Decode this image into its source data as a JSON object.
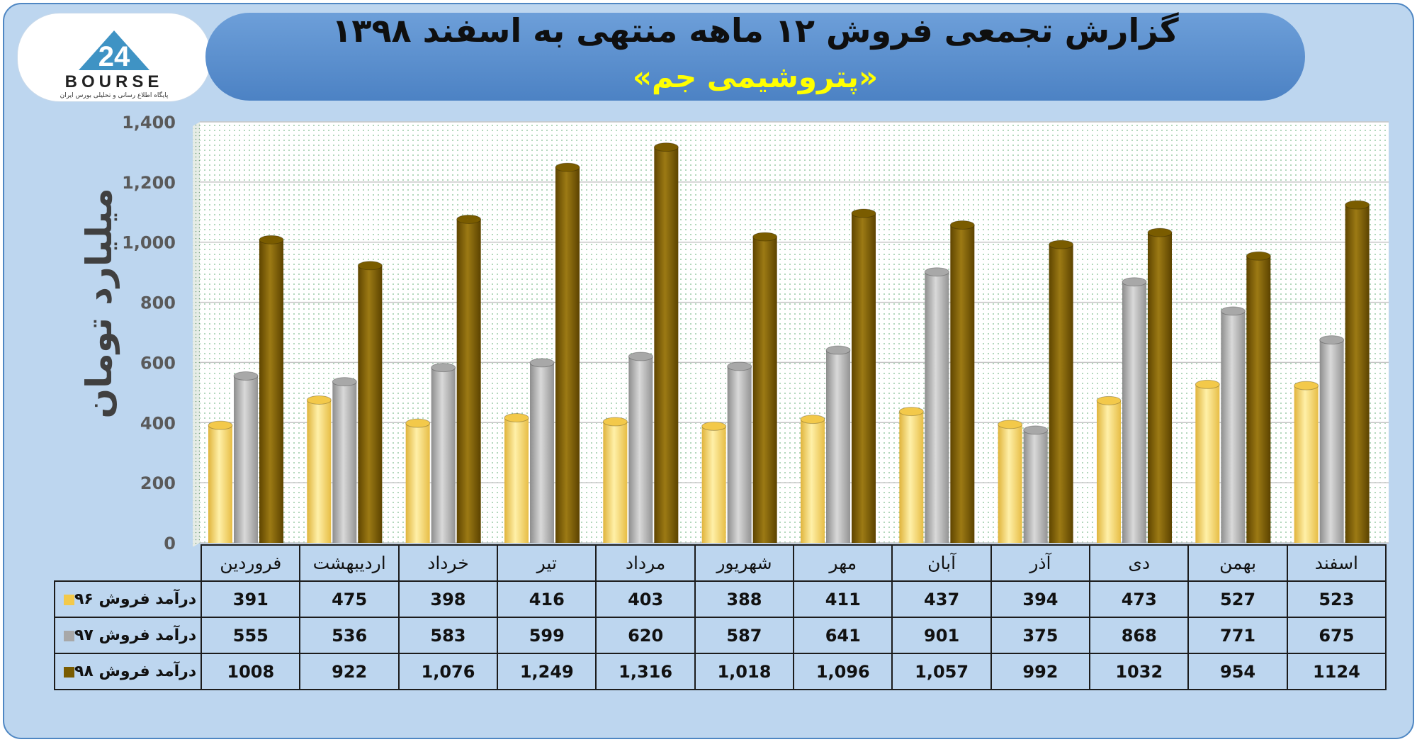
{
  "header": {
    "title": "گزارش تجمعی فروش ۱۲ ماهه منتهی به اسفند ۱۳۹۸",
    "subtitle": "«پتروشیمی جم»"
  },
  "logo": {
    "wordmark": "BOURSE",
    "numeral": "24",
    "tagline": "پایگاه اطلاع رسانی و تحلیلی بورس ایران"
  },
  "colors": {
    "s96": "#f3c94a",
    "s97": "#a8a8a8",
    "s98": "#7a5c00",
    "panel": "#bdd6ef",
    "title_bar": "#5b92d1",
    "subtitle": "#ffff00"
  },
  "chart_data": {
    "type": "bar",
    "ylabel": "میلیارد تومان",
    "ylim": [
      0,
      1400
    ],
    "yticks": [
      "0",
      "200",
      "400",
      "600",
      "800",
      "1,000",
      "1,200",
      "1,400"
    ],
    "ytick_values": [
      0,
      200,
      400,
      600,
      800,
      1000,
      1200,
      1400
    ],
    "grid": true,
    "legend": "table",
    "categories": [
      "فروردین",
      "اردیبهشت",
      "خرداد",
      "تیر",
      "مرداد",
      "شهریور",
      "مهر",
      "آبان",
      "آذر",
      "دی",
      "بهمن",
      "اسفند"
    ],
    "series": [
      {
        "name": "درآمد فروش ۹۶",
        "values": [
          391,
          475,
          398,
          416,
          403,
          388,
          411,
          437,
          394,
          473,
          527,
          523
        ],
        "labels": [
          "391",
          "475",
          "398",
          "416",
          "403",
          "388",
          "411",
          "437",
          "394",
          "473",
          "527",
          "523"
        ]
      },
      {
        "name": "درآمد فروش ۹۷",
        "values": [
          555,
          536,
          583,
          599,
          620,
          587,
          641,
          901,
          375,
          868,
          771,
          675
        ],
        "labels": [
          "555",
          "536",
          "583",
          "599",
          "620",
          "587",
          "641",
          "901",
          "375",
          "868",
          "771",
          "675"
        ]
      },
      {
        "name": "درآمد فروش ۹۸",
        "values": [
          1008,
          922,
          1076,
          1249,
          1316,
          1018,
          1096,
          1057,
          992,
          1032,
          954,
          1124
        ],
        "labels": [
          "1008",
          "922",
          "1,076",
          "1,249",
          "1,316",
          "1,018",
          "1,096",
          "1,057",
          "992",
          "1032",
          "954",
          "1124"
        ]
      }
    ]
  }
}
